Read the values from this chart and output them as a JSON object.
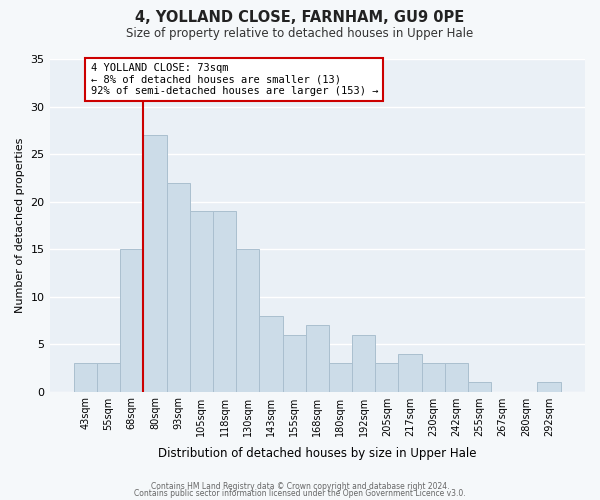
{
  "title": "4, YOLLAND CLOSE, FARNHAM, GU9 0PE",
  "subtitle": "Size of property relative to detached houses in Upper Hale",
  "xlabel": "Distribution of detached houses by size in Upper Hale",
  "ylabel": "Number of detached properties",
  "bin_labels": [
    "43sqm",
    "55sqm",
    "68sqm",
    "80sqm",
    "93sqm",
    "105sqm",
    "118sqm",
    "130sqm",
    "143sqm",
    "155sqm",
    "168sqm",
    "180sqm",
    "192sqm",
    "205sqm",
    "217sqm",
    "230sqm",
    "242sqm",
    "255sqm",
    "267sqm",
    "280sqm",
    "292sqm"
  ],
  "bar_heights": [
    3,
    3,
    15,
    27,
    22,
    19,
    19,
    15,
    8,
    6,
    7,
    3,
    6,
    3,
    4,
    3,
    3,
    1,
    0,
    0,
    1
  ],
  "bar_color": "#ccdce8",
  "bar_edgecolor": "#aabfcf",
  "ylim": [
    0,
    35
  ],
  "yticks": [
    0,
    5,
    10,
    15,
    20,
    25,
    30,
    35
  ],
  "vline_color": "#cc0000",
  "annotation_title": "4 YOLLAND CLOSE: 73sqm",
  "annotation_line1": "← 8% of detached houses are smaller (13)",
  "annotation_line2": "92% of semi-detached houses are larger (153) →",
  "annotation_box_color": "#cc0000",
  "footer_line1": "Contains HM Land Registry data © Crown copyright and database right 2024.",
  "footer_line2": "Contains public sector information licensed under the Open Government Licence v3.0.",
  "background_color": "#f5f8fa",
  "grid_color": "#e0e8ee",
  "plot_bg_color": "#eaf0f6"
}
